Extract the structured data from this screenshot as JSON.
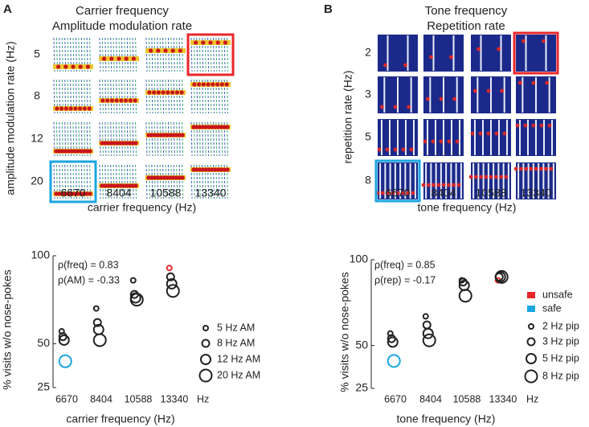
{
  "panels": [
    {
      "letter": "A",
      "title_lines": [
        "Carrier frequency",
        "Amplitude modulation rate"
      ],
      "row_labels": [
        "5",
        "8",
        "12",
        "20"
      ],
      "col_labels": [
        "6670",
        "8404",
        "10588",
        "13340"
      ],
      "y_label": "amplitude modulation rate (Hz)",
      "x_label": "carrier frequency (Hz)"
    },
    {
      "letter": "B",
      "title_lines": [
        "Tone frequency",
        "Repetition rate"
      ],
      "row_labels": [
        "2",
        "3",
        "5",
        "8"
      ],
      "col_labels": [
        "6670",
        "8404",
        "10588",
        "13340"
      ],
      "y_label": "repetition rate (Hz)",
      "x_label": "tone frequency (Hz)"
    }
  ],
  "chart_data": [
    {
      "type": "dot",
      "categories": [
        "6670",
        "8404",
        "10588",
        "13340"
      ],
      "x_unit": "Hz",
      "x_label": "carrier frequency (Hz)",
      "y_label": "% visits w/o nose-pokes",
      "annotations": [
        "ρ(freq) = 0.83",
        "ρ(AM) = -0.33"
      ],
      "ylim": [
        25,
        100
      ],
      "yticks": [
        25,
        50,
        100
      ],
      "series": [
        {
          "name": "5 Hz AM",
          "size": 3,
          "colors": [
            "#222",
            "#222",
            "#222",
            "#e8262b"
          ],
          "values": [
            57,
            70,
            86,
            93
          ]
        },
        {
          "name": "8 Hz AM",
          "size": 4.5,
          "colors": [
            "#222",
            "#222",
            "#222",
            "#222"
          ],
          "values": [
            54,
            62,
            78,
            88
          ]
        },
        {
          "name": "12 Hz AM",
          "size": 6,
          "colors": [
            "#222",
            "#222",
            "#222",
            "#222"
          ],
          "values": [
            52,
            58,
            76,
            84
          ]
        },
        {
          "name": "20 Hz AM",
          "size": 7.5,
          "colors": [
            "#1aa6e0",
            "#222",
            "#222",
            "#222"
          ],
          "values": [
            40,
            52,
            75,
            80
          ]
        }
      ]
    },
    {
      "type": "dot",
      "categories": [
        "6670",
        "8404",
        "10588",
        "13340"
      ],
      "x_unit": "Hz",
      "x_label": "tone frequency (Hz)",
      "y_label": "% visits w/o nose-pokes",
      "annotations": [
        "ρ(freq) = 0.85",
        "ρ(rep) = -0.17"
      ],
      "ylim": [
        25,
        100
      ],
      "yticks": [
        25,
        50,
        100
      ],
      "highlight_legend": [
        {
          "name": "unsafe",
          "color": "#e8262b"
        },
        {
          "name": "safe",
          "color": "#1aa6e0"
        }
      ],
      "series": [
        {
          "name": "2 Hz pip",
          "size": 3,
          "colors": [
            "#222",
            "#222",
            "#222",
            "#e8262b"
          ],
          "values": [
            57,
            67,
            88,
            88
          ]
        },
        {
          "name": "3 Hz pip",
          "size": 4.5,
          "colors": [
            "#222",
            "#222",
            "#222",
            "#222"
          ],
          "values": [
            54,
            62,
            87,
            90
          ]
        },
        {
          "name": "5 Hz pip",
          "size": 6,
          "colors": [
            "#222",
            "#222",
            "#222",
            "#222"
          ],
          "values": [
            52,
            57,
            85,
            90
          ]
        },
        {
          "name": "8 Hz pip",
          "size": 7.5,
          "colors": [
            "#1aa6e0",
            "#222",
            "#222",
            "#222"
          ],
          "values": [
            41,
            53,
            79,
            90
          ]
        }
      ]
    }
  ]
}
